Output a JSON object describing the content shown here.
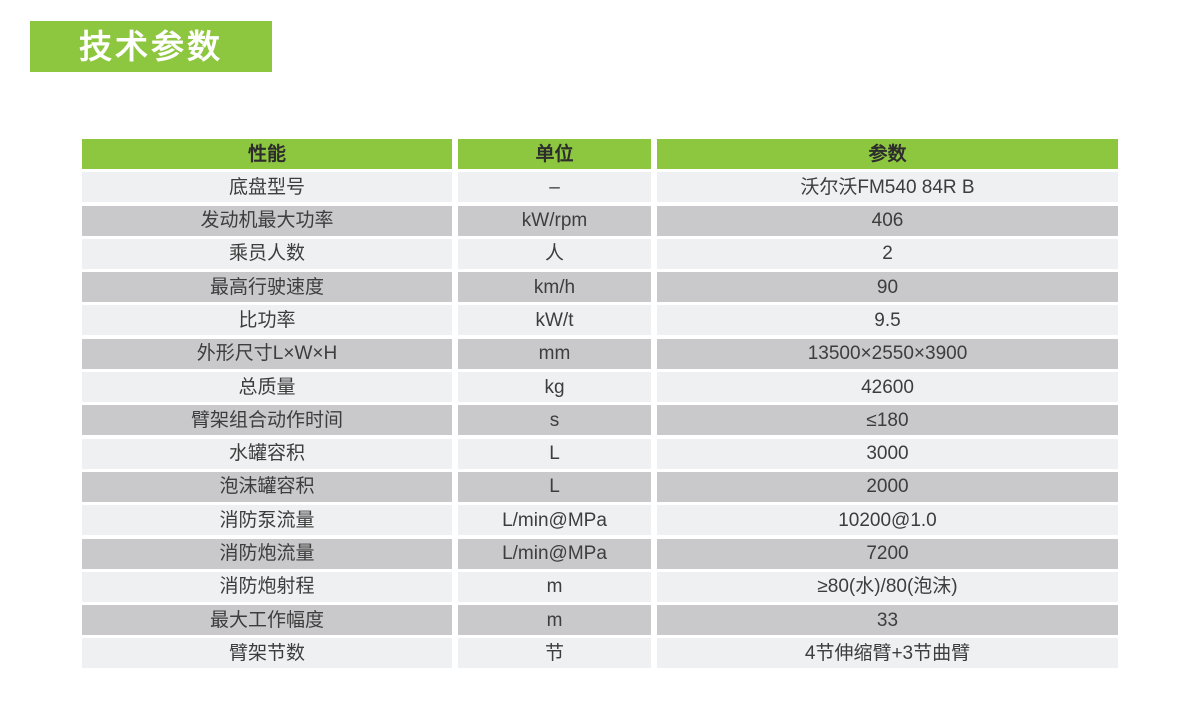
{
  "page": {
    "title": "技术参数"
  },
  "colors": {
    "green": "#8dc63f",
    "badge_text": "#ffffff",
    "header_text": "#2d2d2d",
    "cell_text": "#3d3d3d",
    "row_light": "#eef0f1",
    "row_dark": "#c9c9cb",
    "page_bg": "#ffffff"
  },
  "table": {
    "headers": [
      "性能",
      "单位",
      "参数"
    ],
    "rows": [
      {
        "name": "底盘型号",
        "unit": "–",
        "value": "沃尔沃FM540 84R B"
      },
      {
        "name": "发动机最大功率",
        "unit": "kW/rpm",
        "value": "406"
      },
      {
        "name": "乘员人数",
        "unit": "人",
        "value": "2"
      },
      {
        "name": "最高行驶速度",
        "unit": "km/h",
        "value": "90"
      },
      {
        "name": "比功率",
        "unit": "kW/t",
        "value": "9.5"
      },
      {
        "name": "外形尺寸L×W×H",
        "unit": "mm",
        "value": "13500×2550×3900"
      },
      {
        "name": "总质量",
        "unit": "kg",
        "value": "42600"
      },
      {
        "name": "臂架组合动作时间",
        "unit": "s",
        "value": "≤180"
      },
      {
        "name": "水罐容积",
        "unit": "L",
        "value": "3000"
      },
      {
        "name": "泡沫罐容积",
        "unit": "L",
        "value": "2000"
      },
      {
        "name": "消防泵流量",
        "unit": "L/min@MPa",
        "value": "10200@1.0"
      },
      {
        "name": "消防炮流量",
        "unit": "L/min@MPa",
        "value": "7200"
      },
      {
        "name": "消防炮射程",
        "unit": "m",
        "value": "≥80(水)/80(泡沫)"
      },
      {
        "name": "最大工作幅度",
        "unit": "m",
        "value": "33"
      },
      {
        "name": "臂架节数",
        "unit": "节",
        "value": "4节伸缩臂+3节曲臂"
      }
    ]
  }
}
